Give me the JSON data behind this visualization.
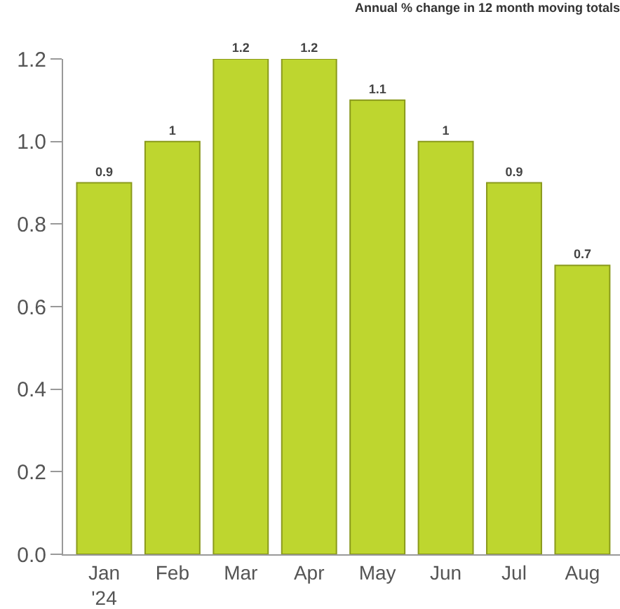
{
  "chart_data": {
    "type": "bar",
    "title": "Annual % change in 12 month moving totals",
    "categories": [
      "Jan\n'24",
      "Feb",
      "Mar",
      "Apr",
      "May",
      "Jun",
      "Jul",
      "Aug"
    ],
    "values": [
      0.9,
      1,
      1.2,
      1.2,
      1.1,
      1,
      0.9,
      0.7
    ],
    "color": "#bed62f",
    "ylim": [
      0,
      1.2
    ],
    "yticks": [
      "0.0",
      "0.2",
      "0.4",
      "0.6",
      "0.8",
      "1.0",
      "1.2"
    ],
    "data_labels": true
  }
}
